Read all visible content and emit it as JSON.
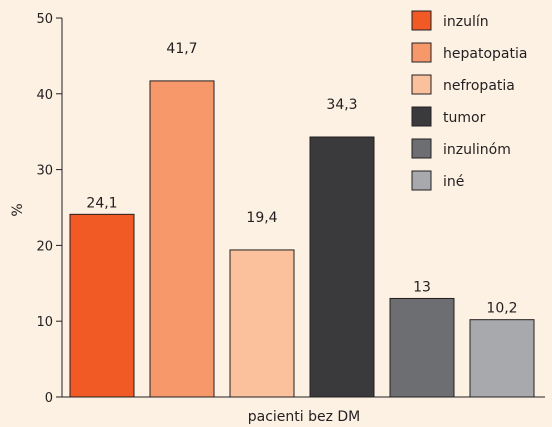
{
  "chart_data": {
    "type": "bar",
    "title": "",
    "xlabel": "pacienti bez DM",
    "ylabel": "%",
    "ylim": [
      0,
      50
    ],
    "yticks": [
      0,
      10,
      20,
      30,
      40,
      50
    ],
    "grid": false,
    "legend_position": "top-right",
    "categories": [
      "inzulín",
      "hepatopatia",
      "nefropatia",
      "tumor",
      "inzulinóm",
      "iné"
    ],
    "values": [
      24.1,
      41.7,
      19.4,
      34.3,
      13,
      10.2
    ],
    "data_labels": [
      "24,1",
      "41,7",
      "19,4",
      "34,3",
      "13",
      "10,2"
    ],
    "colors": [
      "#f15a24",
      "#f7986b",
      "#fbc09c",
      "#3a3a3c",
      "#6d6e71",
      "#a7a9ac"
    ],
    "background": "#fdf1e3"
  }
}
